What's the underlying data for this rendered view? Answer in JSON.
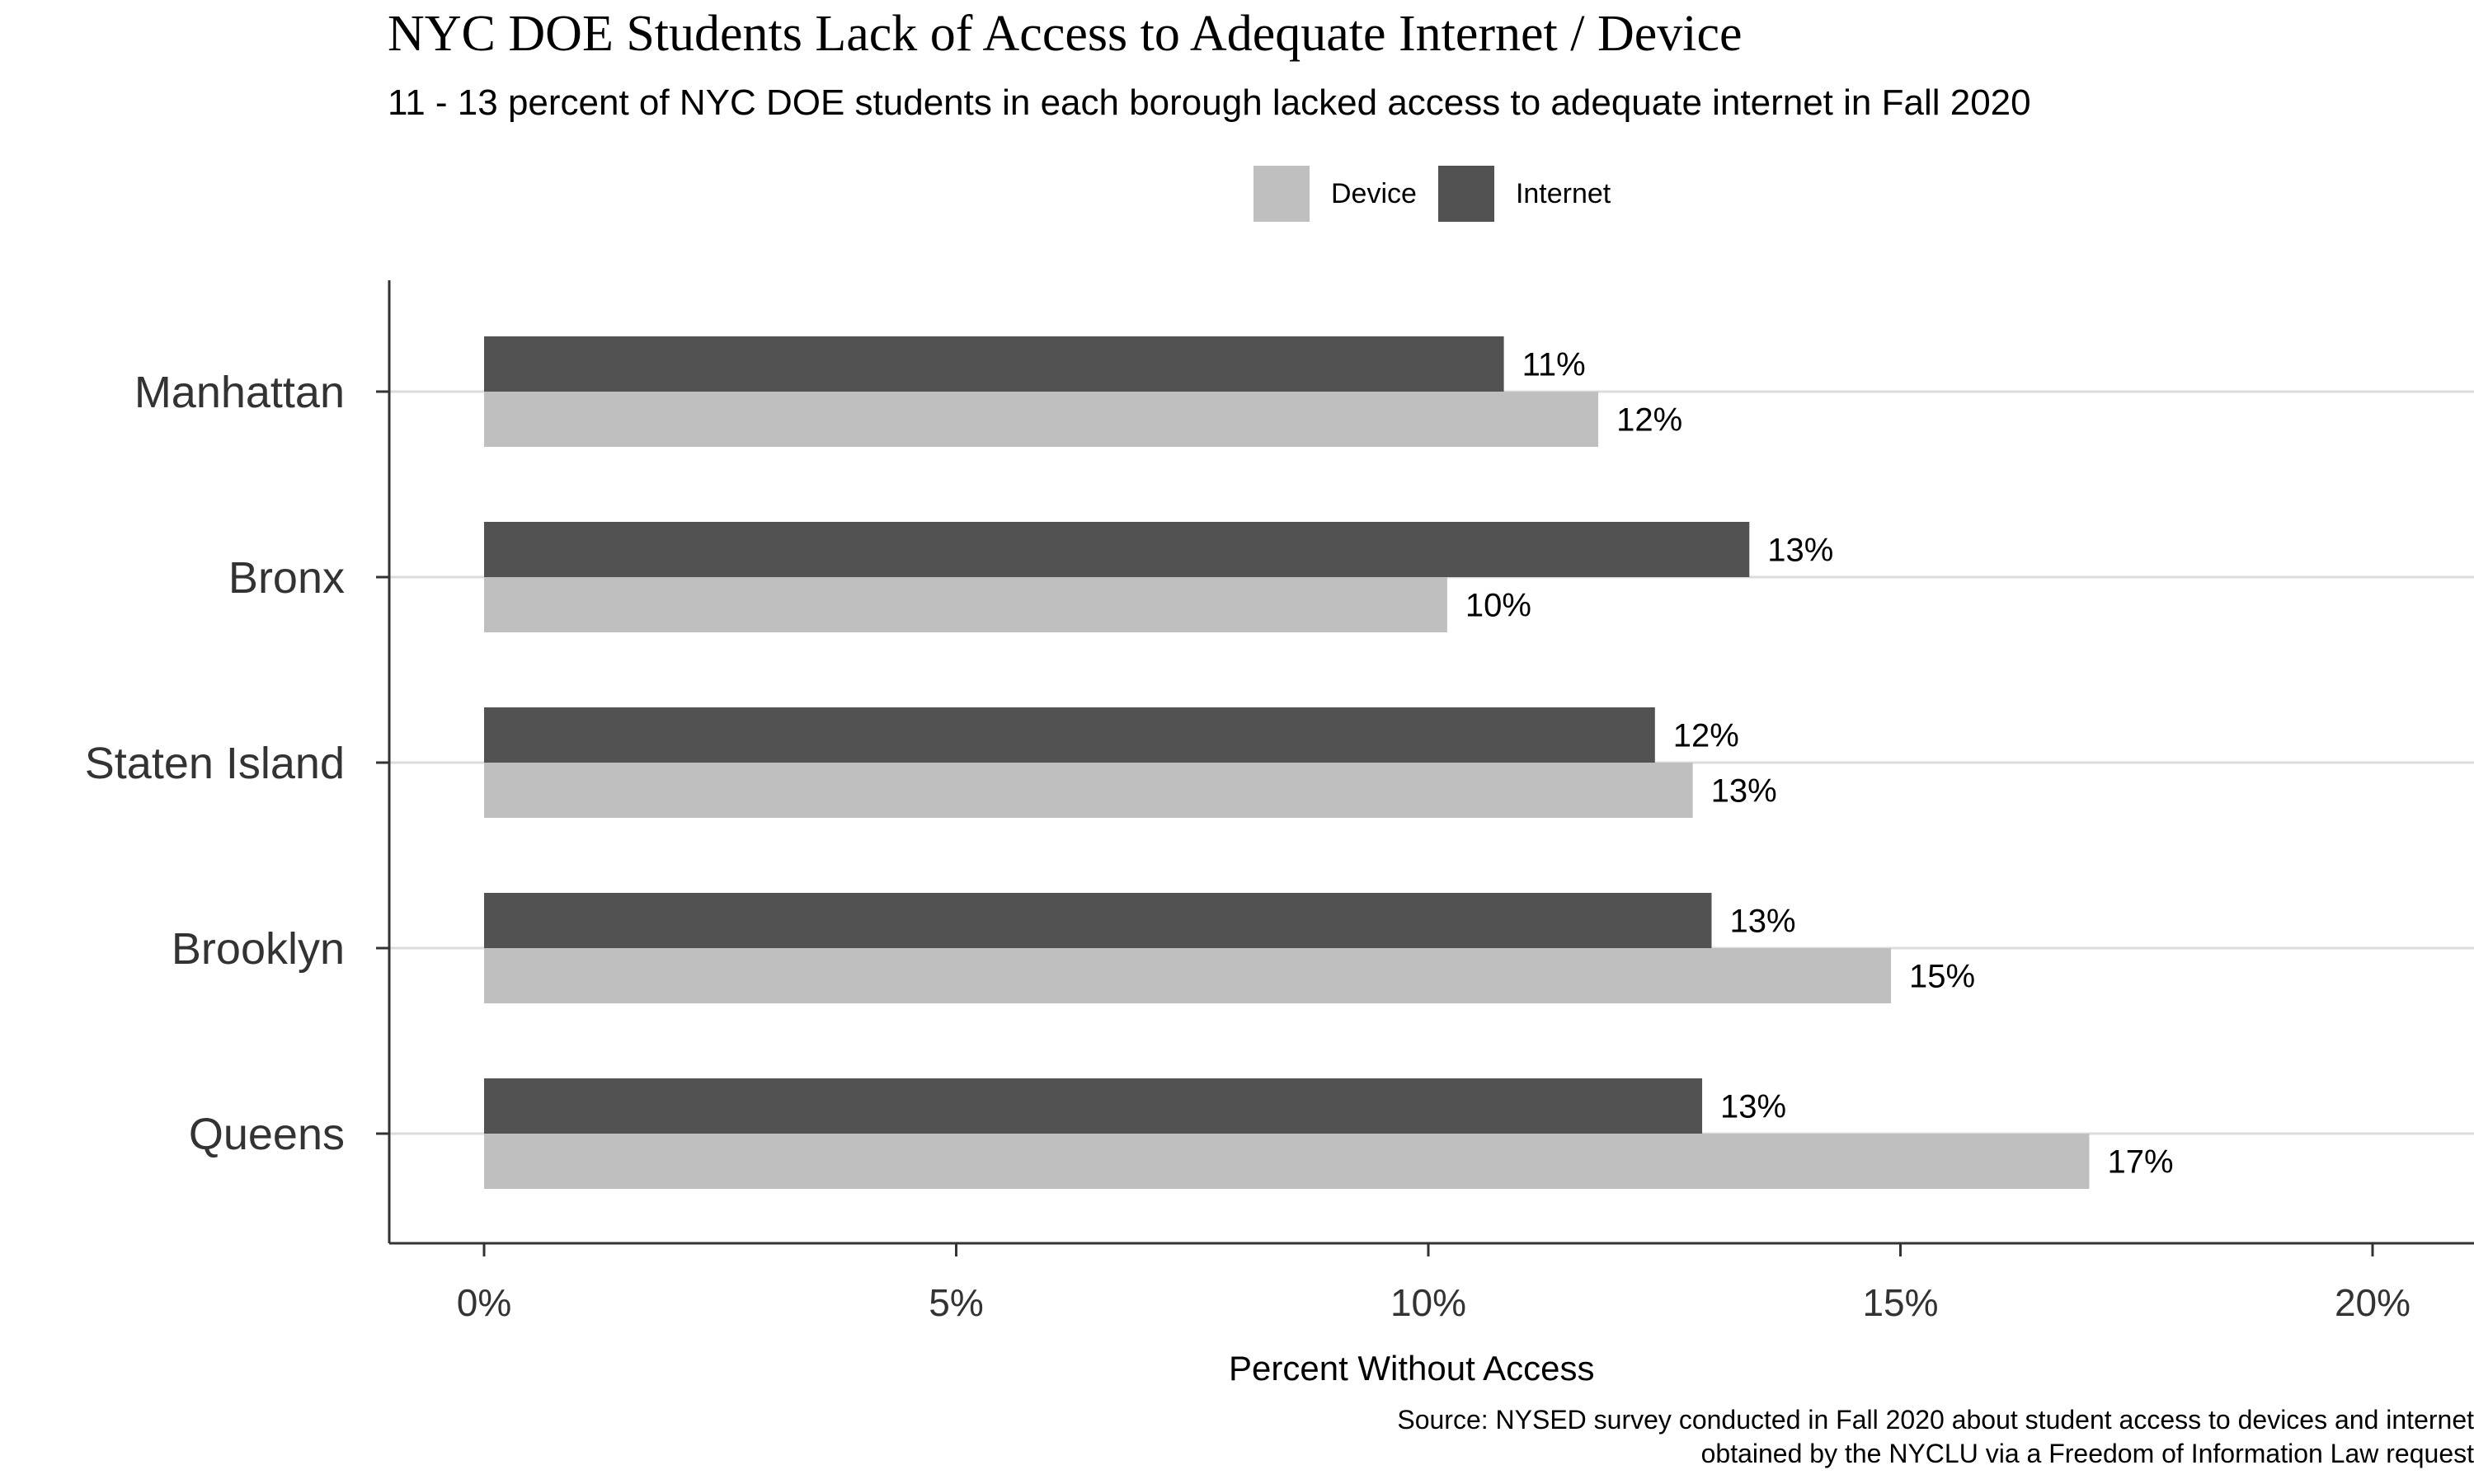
{
  "chart_data": {
    "type": "bar",
    "orientation": "horizontal",
    "title": "NYC DOE Students Lack of Access to Adequate Internet / Device",
    "subtitle": "11 - 13 percent of NYC DOE students in each borough lacked access to adequate internet in Fall 2020",
    "xlabel": "Percent Without Access",
    "ylabel": "",
    "xlim": [
      0,
      20
    ],
    "x_ticks": [
      0,
      5,
      10,
      15,
      20
    ],
    "x_tick_labels": [
      "0%",
      "5%",
      "10%",
      "15%",
      "20%"
    ],
    "categories": [
      "Manhattan",
      "Bronx",
      "Staten Island",
      "Brooklyn",
      "Queens"
    ],
    "series": [
      {
        "name": "Internet",
        "color": "#525252",
        "values": [
          10.8,
          13.4,
          12.4,
          13.0,
          12.9
        ],
        "labels": [
          "11%",
          "13%",
          "12%",
          "13%",
          "13%"
        ]
      },
      {
        "name": "Device",
        "color": "#bfbfbf",
        "values": [
          11.8,
          10.2,
          12.8,
          14.9,
          17.0
        ],
        "labels": [
          "12%",
          "10%",
          "13%",
          "15%",
          "17%"
        ]
      }
    ],
    "legend": {
      "position": "top",
      "order": [
        "Device",
        "Internet"
      ]
    },
    "grid": {
      "major_y": true,
      "major_x": false
    },
    "source_lines": [
      "Source: NYSED survey conducted in Fall 2020 about student access to devices and internet",
      "obtained by the NYCLU via a Freedom of Information Law request"
    ]
  }
}
